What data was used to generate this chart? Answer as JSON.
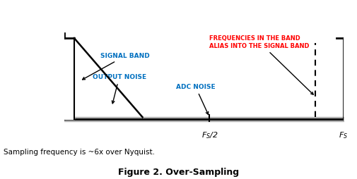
{
  "title": "Figure 2. Over-Sampling",
  "subtitle": "Sampling frequency is ~6x over Nyquist.",
  "fig_width": 5.06,
  "fig_height": 2.54,
  "dpi": 100,
  "bg_color": "#ffffff",
  "signal_band_label": "SIGNAL BAND",
  "signal_band_color": "#0070c0",
  "output_noise_label": "OUTPUT NOISE",
  "output_noise_color": "#0070c0",
  "adc_noise_label": "ADC NOISE",
  "adc_noise_color": "#0070c0",
  "freq_band_line1": "FREQUENCIES IN THE BAND",
  "freq_band_line2": "ALIAS INTO THE SIGNAL BAND",
  "freq_band_color": "#ff0000",
  "fs_half_label": "F$_S$/2",
  "fs_label": "F$_S$",
  "label_color": "#000000",
  "noise_floor_color": "#b0b0b0"
}
